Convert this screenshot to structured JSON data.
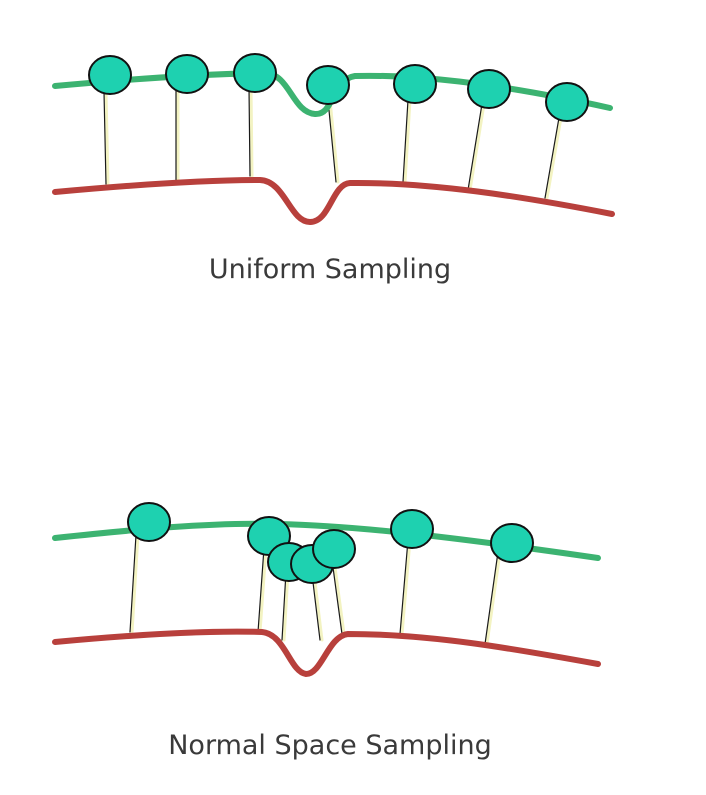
{
  "diagrams": [
    {
      "caption": "Uniform Sampling"
    },
    {
      "caption": "Normal Space Sampling"
    }
  ],
  "colors": {
    "upper_surface": "#3cb371",
    "lower_surface": "#b8403c",
    "sample_point": "#1ed1b0",
    "correspondence_line": "#f0f0b0"
  }
}
